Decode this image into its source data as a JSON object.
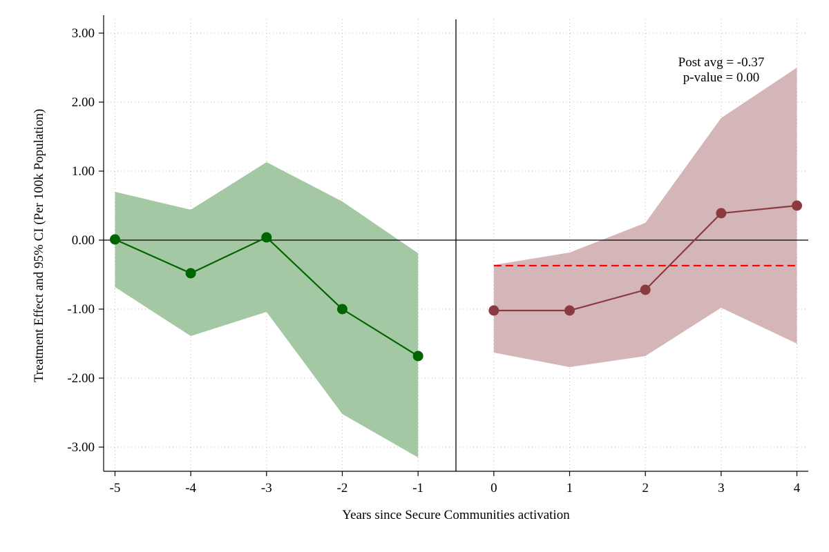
{
  "chart_data": {
    "type": "line",
    "title": "",
    "xlabel": "Years since Secure Communities activation",
    "ylabel": "Treatment Effect and 95% CI (Per 100k Population)",
    "xlim": [
      -5.15,
      4.15
    ],
    "ylim": [
      -3.35,
      3.2
    ],
    "x_ticks": [
      {
        "value": -5,
        "label": "-5"
      },
      {
        "value": -4,
        "label": "-4"
      },
      {
        "value": -3,
        "label": "-3"
      },
      {
        "value": -2,
        "label": "-2"
      },
      {
        "value": -1,
        "label": "-1"
      },
      {
        "value": 0,
        "label": "0"
      },
      {
        "value": 1,
        "label": "1"
      },
      {
        "value": 2,
        "label": "2"
      },
      {
        "value": 3,
        "label": "3"
      },
      {
        "value": 4,
        "label": "4"
      }
    ],
    "y_ticks": [
      {
        "value": 3,
        "label": "3.00"
      },
      {
        "value": 2,
        "label": "2.00"
      },
      {
        "value": 1,
        "label": "1.00"
      },
      {
        "value": 0,
        "label": "0.00"
      },
      {
        "value": -1,
        "label": "-1.00"
      },
      {
        "value": -2,
        "label": "-2.00"
      },
      {
        "value": -3,
        "label": "-3.00"
      }
    ],
    "grid": true,
    "series": [
      {
        "period": "pre",
        "color": "#006400",
        "band_color": "#a3c8a3",
        "x": [
          -5,
          -4,
          -3,
          -2,
          -1
        ],
        "estimate": [
          0.01,
          -0.48,
          0.04,
          -1.0,
          -1.68
        ],
        "ci_lower": [
          -0.68,
          -1.39,
          -1.04,
          -2.52,
          -3.15
        ],
        "ci_upper": [
          0.7,
          0.44,
          1.13,
          0.56,
          -0.19
        ]
      },
      {
        "period": "post",
        "color": "#8b3a40",
        "band_color": "#d5b6b8",
        "x": [
          0,
          1,
          2,
          3,
          4
        ],
        "estimate": [
          -1.02,
          -1.02,
          -0.72,
          0.39,
          0.5
        ],
        "ci_lower": [
          -1.63,
          -1.84,
          -1.68,
          -0.98,
          -1.5
        ],
        "ci_upper": [
          -0.36,
          -0.18,
          0.25,
          1.77,
          2.5
        ]
      }
    ],
    "reference_lines": {
      "zero_y": 0,
      "event_x": -0.5,
      "post_avg": {
        "value": -0.37,
        "x_start": 0,
        "x_end": 4,
        "color": "#ff0000"
      }
    },
    "annotations": [
      {
        "text": "Post avg = -0.37"
      },
      {
        "text": "p-value = 0.00"
      }
    ]
  }
}
